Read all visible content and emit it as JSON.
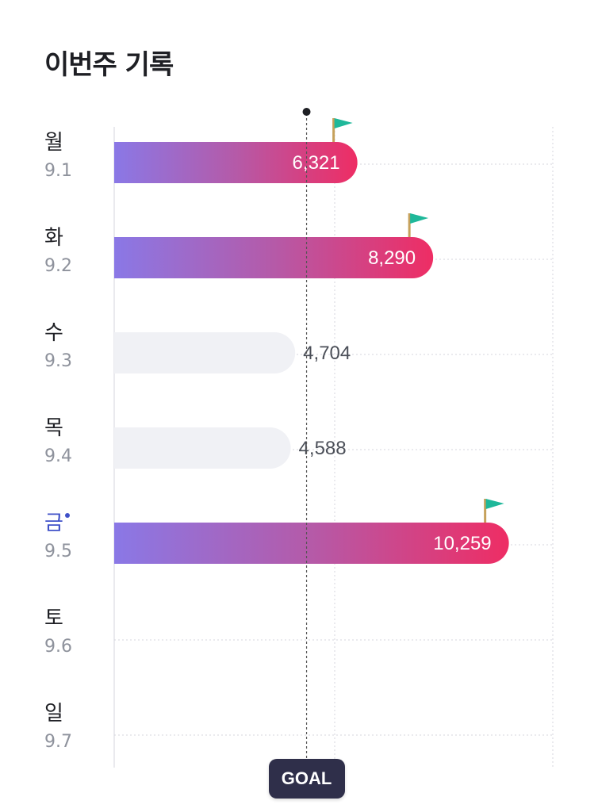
{
  "header": {
    "title": "이번주 기록"
  },
  "chart_data": {
    "type": "bar",
    "orientation": "horizontal",
    "categories": [
      "월",
      "화",
      "수",
      "목",
      "금",
      "토",
      "일"
    ],
    "dates": [
      "9.1",
      "9.2",
      "9.3",
      "9.4",
      "9.5",
      "9.6",
      "9.7"
    ],
    "values": [
      6321,
      8290,
      4704,
      4588,
      10259,
      null,
      null
    ],
    "value_labels": [
      "6,321",
      "8,290",
      "4,704",
      "4,588",
      "10,259",
      "",
      ""
    ],
    "goal_reached": [
      true,
      true,
      false,
      false,
      true,
      false,
      false
    ],
    "today_index": 4,
    "goal": 5000,
    "goal_label": "GOAL",
    "xlim": [
      0,
      11400
    ],
    "grid": true,
    "colors": {
      "bar_gradient_start": "#8a78e6",
      "bar_gradient_mid": "#b55aa8",
      "bar_gradient_end": "#ee2d64",
      "bar_below_goal": "#f0f1f5",
      "flag": "#1fb89a",
      "flag_pole": "#c6a15b",
      "goal_line": "#555555",
      "today": "#3f51c8"
    }
  }
}
